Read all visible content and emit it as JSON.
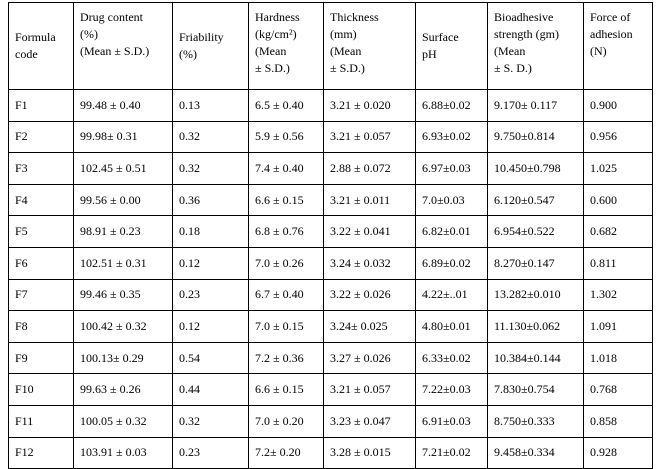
{
  "table": {
    "header": [
      [
        "Formula",
        "code"
      ],
      [
        "Drug content",
        "(%)",
        "(Mean ± S.D.)"
      ],
      [
        "Friability",
        "(%)"
      ],
      [
        "Hardness",
        "(kg/cm²)",
        "(Mean",
        "± S.D.)"
      ],
      [
        "Thickness",
        "(mm)",
        "(Mean",
        "± S.D.)"
      ],
      [
        "Surface",
        "pH"
      ],
      [
        "Bioadhesive",
        "strength (gm)",
        "(Mean",
        "± S. D.)"
      ],
      [
        "Force of",
        "adhesion",
        "(N)"
      ]
    ],
    "rows": [
      [
        "F1",
        "99.48 ± 0.40",
        "0.13",
        "6.5 ± 0.40",
        "3.21 ± 0.020",
        "6.88±0.02",
        "9.170± 0.117",
        "0.900"
      ],
      [
        "F2",
        "99.98± 0.31",
        "0.32",
        "5.9 ± 0.56",
        "3.21 ± 0.057",
        "6.93±0.02",
        "9.750±0.814",
        "0.956"
      ],
      [
        "F3",
        "102.45 ± 0.51",
        "0.32",
        "7.4 ± 0.40",
        "2.88 ± 0.072",
        "6.97±0.03",
        "10.450±0.798",
        "1.025"
      ],
      [
        "F4",
        "99.56 ± 0.00",
        "0.36",
        "6.6 ± 0.15",
        "3.21 ± 0.011",
        "7.0±0.03",
        "6.120±0.547",
        "0.600"
      ],
      [
        "F5",
        "98.91 ± 0.23",
        "0.18",
        "6.8 ± 0.76",
        "3.22 ± 0.041",
        "6.82±0.01",
        "6.954±0.522",
        "0.682"
      ],
      [
        "F6",
        "102.51 ± 0.31",
        "0.12",
        "7.0 ± 0.26",
        "3.24 ± 0.032",
        "6.89±0.02",
        "8.270±0.147",
        "0.811"
      ],
      [
        "F7",
        "99.46 ± 0.35",
        "0.23",
        "6.7 ± 0.40",
        "3.22 ± 0.026",
        "4.22±..01",
        "13.282±0.010",
        "1.302"
      ],
      [
        "F8",
        "100.42 ± 0.32",
        "0.12",
        "7.0 ± 0.15",
        "3.24± 0.025",
        "4.80±0.01",
        "11.130±0.062",
        "1.091"
      ],
      [
        "F9",
        "100.13± 0.29",
        "0.54",
        "7.2 ± 0.36",
        "3.27 ± 0.026",
        "6.33±0.02",
        "10.384±0.144",
        "1.018"
      ],
      [
        "F10",
        "99.63 ± 0.26",
        "0.44",
        "6.6 ± 0.15",
        "3.21 ± 0.057",
        "7.22±0.03",
        "7.830±0.754",
        "0.768"
      ],
      [
        "F11",
        "100.05 ± 0.32",
        "0.32",
        "7.0 ± 0.20",
        "3.23 ± 0.047",
        "6.91±0.03",
        "8.750±0.333",
        "0.858"
      ],
      [
        "F12",
        "103.91 ± 0.03",
        "0.23",
        "7.2± 0.20",
        "3.28 ± 0.015",
        "7.21±0.02",
        "9.458±0.334",
        "0.928"
      ]
    ]
  }
}
